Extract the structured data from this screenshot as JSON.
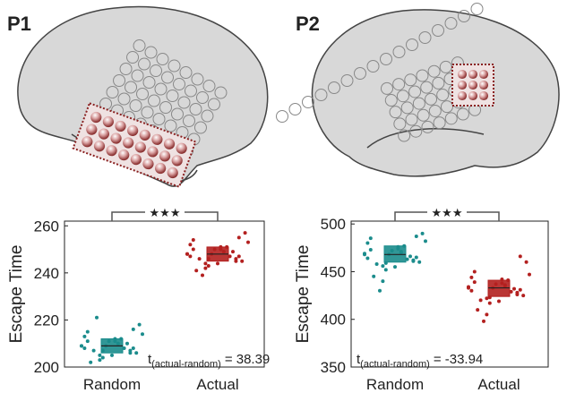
{
  "panels": [
    {
      "label": "P1"
    },
    {
      "label": "P2"
    }
  ],
  "chart_data": [
    {
      "type": "box-scatter",
      "y_label": "Escape Time",
      "categories": [
        "Random",
        "Actual"
      ],
      "ylim": [
        200,
        262
      ],
      "yticks": [
        200,
        220,
        240,
        260
      ],
      "significance": "★★★",
      "stat_symbol": "t",
      "stat_subscript": "(actual-random)",
      "stat_value": "= 38.39",
      "series": [
        {
          "name": "Random",
          "color": "#1b8c8c",
          "median": 209,
          "q1": 206,
          "q3": 212,
          "points": [
            209,
            207,
            211,
            205,
            213,
            208,
            210,
            204,
            215,
            206,
            212,
            209,
            202,
            218,
            208,
            211,
            207,
            214,
            210,
            205,
            221,
            209,
            206,
            212,
            203,
            208,
            216,
            210,
            207,
            211
          ]
        },
        {
          "name": "Actual",
          "color": "#b3201f",
          "median": 248,
          "q1": 245,
          "q3": 251,
          "points": [
            248,
            246,
            250,
            244,
            252,
            247,
            249,
            243,
            254,
            245,
            251,
            248,
            241,
            257,
            247,
            250,
            246,
            253,
            249,
            244,
            239,
            248,
            245,
            251,
            242,
            247,
            255,
            249,
            246,
            250
          ]
        }
      ]
    },
    {
      "type": "box-scatter",
      "y_label": "Escape Time",
      "categories": [
        "Random",
        "Actual"
      ],
      "ylim": [
        350,
        503
      ],
      "yticks": [
        350,
        400,
        450,
        500
      ],
      "significance": "★★★",
      "stat_symbol": "t",
      "stat_subscript": "(actual-random)",
      "stat_value": "= -33.94",
      "series": [
        {
          "name": "Random",
          "color": "#1b8c8c",
          "median": 468,
          "q1": 460,
          "q3": 477,
          "points": [
            468,
            462,
            474,
            456,
            480,
            465,
            471,
            452,
            485,
            460,
            477,
            468,
            445,
            490,
            463,
            472,
            458,
            482,
            466,
            455,
            430,
            469,
            461,
            476,
            440,
            464,
            487,
            470,
            459,
            473
          ]
        },
        {
          "name": "Actual",
          "color": "#b3201f",
          "median": 433,
          "q1": 424,
          "q3": 441,
          "points": [
            433,
            428,
            438,
            422,
            444,
            431,
            436,
            417,
            450,
            425,
            441,
            433,
            410,
            460,
            429,
            437,
            420,
            447,
            432,
            419,
            398,
            434,
            426,
            442,
            405,
            430,
            466,
            435,
            423,
            439
          ]
        }
      ]
    }
  ]
}
